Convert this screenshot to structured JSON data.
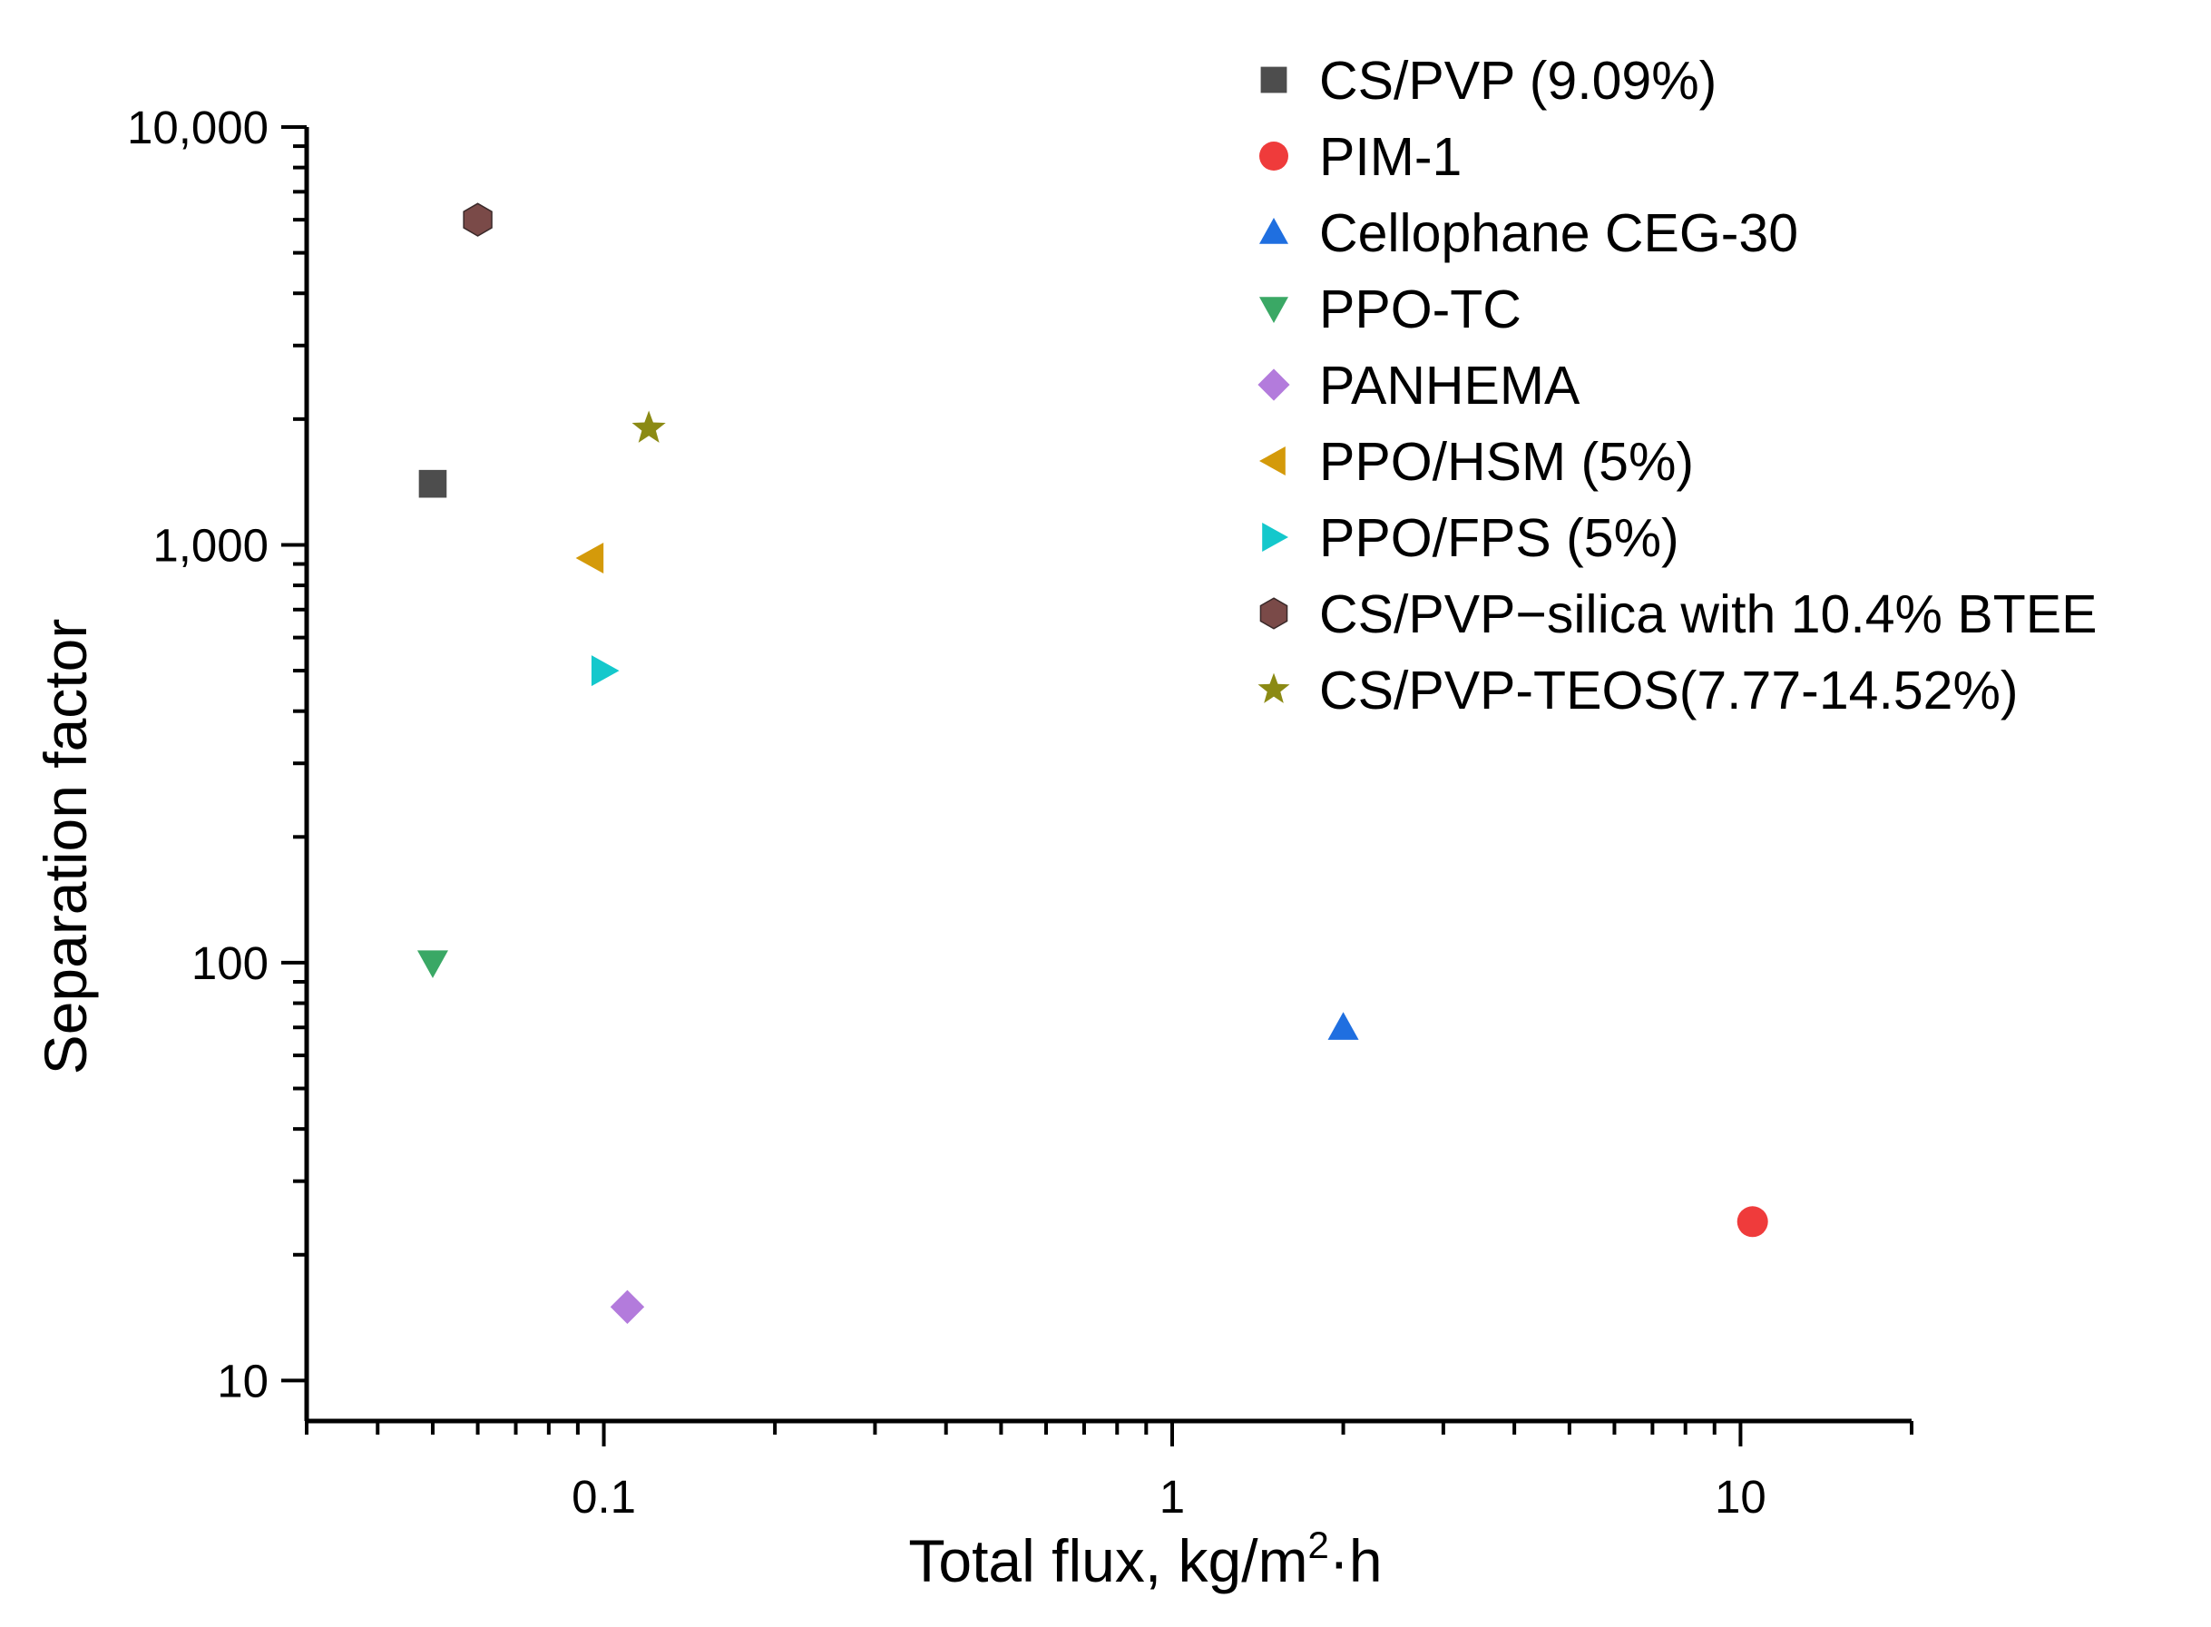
{
  "chart_data": {
    "type": "scatter",
    "title": "",
    "xlabel": "Total flux, kg/m",
    "xlabel_superscript": "2",
    "xlabel_suffix": "·h",
    "ylabel": "Separation factor",
    "xscale": "log",
    "yscale": "log",
    "xlim": [
      0.03,
      20
    ],
    "ylim": [
      8,
      10000
    ],
    "y_axis_floor": 10,
    "x_ticks": [
      {
        "value": 0.1,
        "label": "0.1"
      },
      {
        "value": 1,
        "label": "1"
      },
      {
        "value": 10,
        "label": "10"
      }
    ],
    "y_ticks": [
      {
        "value": 10,
        "label": "10"
      },
      {
        "value": 100,
        "label": "100"
      },
      {
        "value": 1000,
        "label": "1,000"
      },
      {
        "value": 10000,
        "label": "10,000"
      }
    ],
    "legend_position": "top-right",
    "series": [
      {
        "name": "CS/PVP (9.09%)",
        "marker": "square",
        "color": "#4d4d4d",
        "x": 0.05,
        "y": 1400
      },
      {
        "name": "PIM-1",
        "marker": "circle",
        "color": "#ef3b3b",
        "x": 10.5,
        "y": 24
      },
      {
        "name": "Cellophane CEG-30",
        "marker": "triangle-up",
        "color": "#1f6fe0",
        "x": 2.0,
        "y": 70
      },
      {
        "name": "PPO-TC",
        "marker": "triangle-down",
        "color": "#3aa865",
        "x": 0.05,
        "y": 100
      },
      {
        "name": "PANHEMA",
        "marker": "diamond",
        "color": "#b37bdc",
        "x": 0.11,
        "y": 15
      },
      {
        "name": "PPO/HSM (5%)",
        "marker": "triangle-left",
        "color": "#d49a0a",
        "x": 0.095,
        "y": 930
      },
      {
        "name": "PPO/FPS (5%)",
        "marker": "triangle-right",
        "color": "#14c8cc",
        "x": 0.1,
        "y": 500
      },
      {
        "name": "CS/PVP−silica with 10.4% BTEE",
        "marker": "hexagon",
        "color": "#7a4a48",
        "x": 0.06,
        "y": 6000
      },
      {
        "name": "CS/PVP-TEOS(7.77-14.52%)",
        "marker": "star",
        "color": "#8b8a14",
        "x": 0.12,
        "y": 1900
      }
    ]
  }
}
